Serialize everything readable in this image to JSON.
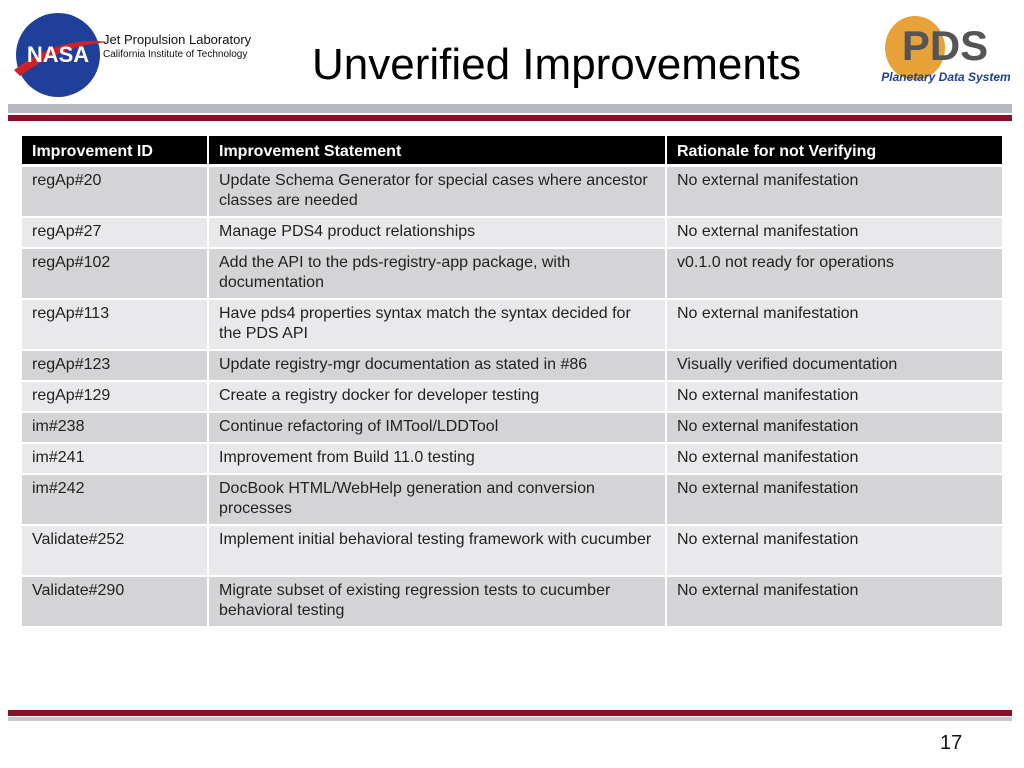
{
  "header": {
    "org_line1": "Jet Propulsion Laboratory",
    "org_line2": "California Institute of Technology",
    "nasa_logo": "NASA",
    "title": "Unverified Improvements",
    "pds_logo": "PDS",
    "pds_logo_sub": "Planetary Data System"
  },
  "table": {
    "columns": [
      "Improvement ID",
      "Improvement Statement",
      "Rationale for not Verifying"
    ],
    "rows": [
      [
        "regAp#20",
        "Update Schema Generator for special cases where ancestor classes are needed",
        "No external manifestation"
      ],
      [
        "regAp#27",
        "Manage PDS4 product relationships",
        "No external manifestation"
      ],
      [
        "regAp#102",
        "Add the API to the pds-registry-app package, with documentation",
        "v0.1.0 not ready for operations"
      ],
      [
        "regAp#113",
        "Have pds4 properties syntax match the syntax decided for the PDS API",
        "No external manifestation"
      ],
      [
        "regAp#123",
        "Update registry-mgr documentation as stated in #86",
        "Visually verified documentation"
      ],
      [
        "regAp#129",
        "Create a registry docker for developer testing",
        "No external manifestation"
      ],
      [
        "im#238",
        "Continue refactoring of IMTool/LDDTool",
        "No external manifestation"
      ],
      [
        "im#241",
        "Improvement from Build 11.0 testing",
        "No external manifestation"
      ],
      [
        "im#242",
        "DocBook HTML/WebHelp generation and conversion processes",
        "No external manifestation"
      ],
      [
        "Validate#252",
        "Implement initial behavioral testing framework with cucumber",
        "No external manifestation"
      ],
      [
        "Validate#290",
        "Migrate subset of existing regression tests to cucumber behavioral testing",
        "No external manifestation"
      ]
    ]
  },
  "footer": {
    "page_number": "17"
  }
}
